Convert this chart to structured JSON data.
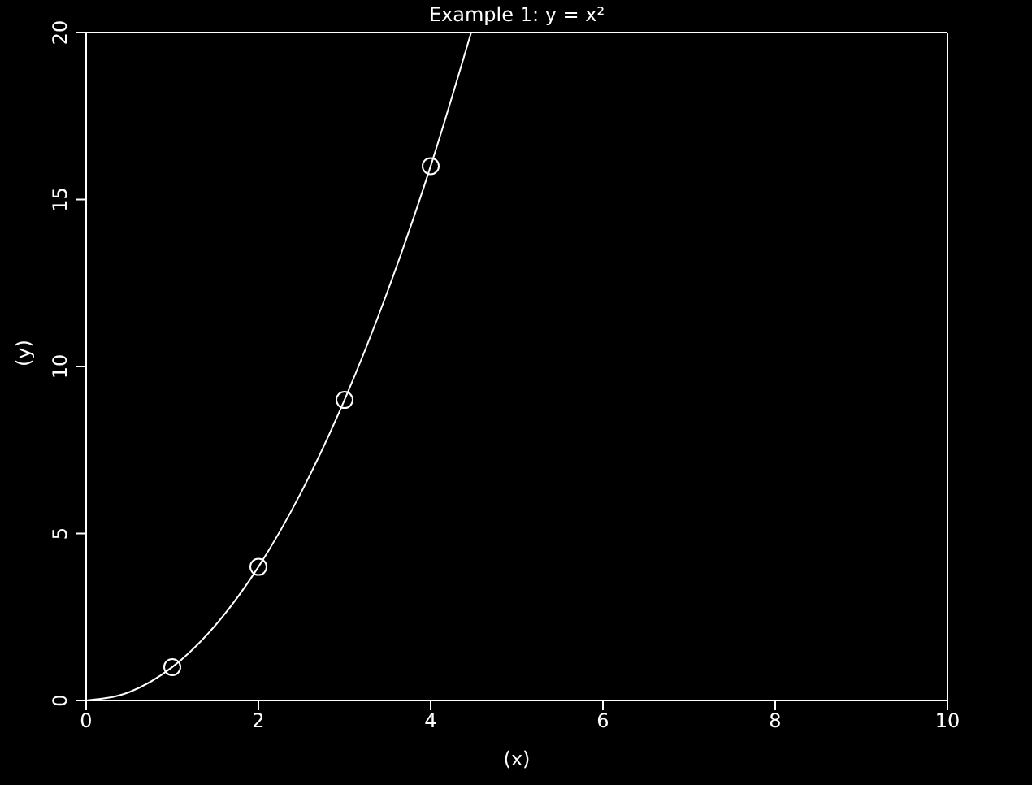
{
  "chart_data": {
    "type": "line",
    "title": "Example 1:  y = x²",
    "xlabel": "(x)",
    "ylabel": "(y)",
    "xlim": [
      0,
      10
    ],
    "xticks": [
      0,
      2,
      4,
      6,
      8,
      10
    ],
    "ylim": [
      0,
      20
    ],
    "yticks": [
      0,
      5,
      10,
      15,
      20
    ],
    "grid": false,
    "legend": false,
    "series": [
      {
        "color": "#ffffff",
        "marker": "none",
        "x": [
          0,
          0.5,
          1,
          1.5,
          2,
          2.5,
          3,
          3.5,
          4,
          4.47
        ],
        "values": [
          0,
          0.25,
          1,
          2.25,
          4,
          6.25,
          9,
          12.25,
          16,
          20
        ]
      },
      {
        "type": "scatter",
        "color": "#ffffff",
        "marker": "circle",
        "x": [
          1,
          2,
          3,
          4
        ],
        "values": [
          1,
          4,
          9,
          16
        ]
      }
    ]
  }
}
